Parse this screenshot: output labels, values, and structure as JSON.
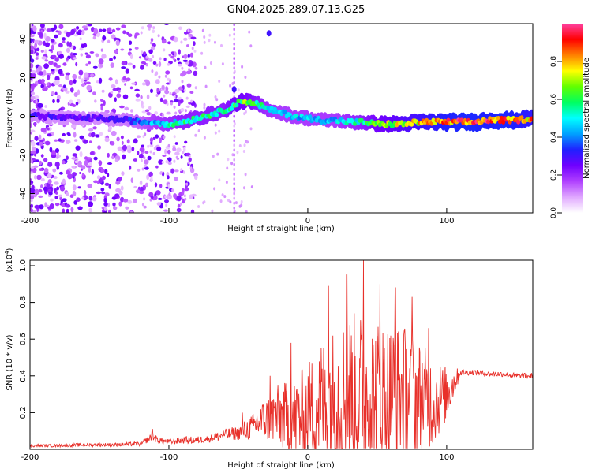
{
  "page_title": "GN04.2025.289.07.13.G25",
  "chart_data": [
    {
      "type": "heatmap",
      "name": "spectrogram",
      "xlabel": "Height of straight line (km)",
      "ylabel": "Frequency (Hz)",
      "xlim": [
        -200,
        162
      ],
      "ylim": [
        -50,
        48
      ],
      "xticks": [
        -200,
        -100,
        0,
        100
      ],
      "yticks": [
        -40,
        -20,
        0,
        20,
        40
      ],
      "colorbar": {
        "label": "Normalized spectral amplitude",
        "range": [
          0,
          1
        ],
        "ticks": [
          0.0,
          0.2,
          0.4,
          0.6,
          0.8
        ],
        "tick_labels": [
          "0.0",
          "0.2",
          "0.4",
          "0.6",
          "0.8"
        ],
        "colors": [
          "#ffffff",
          "#e0a8ff",
          "#b040ff",
          "#7000ff",
          "#2020ff",
          "#00a0ff",
          "#00ffff",
          "#00ff60",
          "#60ff00",
          "#ffff00",
          "#ff8000",
          "#ff0000",
          "#ff40a0"
        ]
      },
      "ridge": {
        "x": [
          -200,
          -190,
          -170,
          -150,
          -130,
          -120,
          -110,
          -100,
          -90,
          -80,
          -70,
          -60,
          -55,
          -50,
          -45,
          -40,
          -35,
          -30,
          -20,
          -10,
          0,
          10,
          20,
          30,
          40,
          50,
          60,
          70,
          80,
          90,
          100,
          110,
          120,
          130,
          140,
          150,
          162
        ],
        "freq": [
          1,
          0,
          -1,
          -1,
          -2,
          -3,
          -3,
          -4,
          -3,
          -1,
          1,
          3,
          5,
          7,
          8,
          7,
          6,
          4,
          2,
          0,
          -1,
          -2,
          -2,
          -3,
          -3,
          -4,
          -4,
          -4,
          -3,
          -3,
          -3,
          -3,
          -3,
          -2,
          -2,
          -2,
          -1
        ],
        "amplitude": [
          0.35,
          0.3,
          0.3,
          0.3,
          0.35,
          0.4,
          0.5,
          0.55,
          0.6,
          0.6,
          0.6,
          0.6,
          0.65,
          0.7,
          0.7,
          0.65,
          0.6,
          0.55,
          0.5,
          0.5,
          0.5,
          0.5,
          0.5,
          0.55,
          0.6,
          0.7,
          0.75,
          0.8,
          0.85,
          0.9,
          0.95,
          0.97,
          0.97,
          0.95,
          0.97,
          0.95,
          0.9
        ]
      },
      "annotations": [
        {
          "text": "isolated streak",
          "x": -28,
          "freq": 43
        },
        {
          "text": "vertical streak",
          "x": -53,
          "freq": 14
        }
      ]
    },
    {
      "type": "line",
      "name": "snr",
      "xlabel": "Height of straight line (km)",
      "ylabel": "SNR (10 * v/v)",
      "y_multiplier_label": "(x10",
      "y_multiplier_exponent": "4",
      "y_multiplier_suffix": ")",
      "xlim": [
        -200,
        162
      ],
      "ylim": [
        0,
        1.03
      ],
      "xticks": [
        -200,
        -100,
        0,
        100
      ],
      "yticks": [
        0.2,
        0.4,
        0.6,
        0.8,
        1.0
      ],
      "ytick_labels": [
        "0.2",
        "0.4",
        "0.6",
        "0.8",
        "1.0"
      ],
      "series": [
        {
          "name": "SNR",
          "color": "#e8302a",
          "x": [
            -200,
            -180,
            -160,
            -140,
            -120,
            -112,
            -108,
            -100,
            -90,
            -80,
            -70,
            -60,
            -50,
            -40,
            -35,
            -30,
            -25,
            -20,
            -15,
            -10,
            -5,
            0,
            5,
            10,
            20,
            30,
            40,
            50,
            60,
            70,
            80,
            90,
            100,
            110,
            120,
            130,
            140,
            150,
            162
          ],
          "base": [
            0.02,
            0.02,
            0.025,
            0.025,
            0.03,
            0.07,
            0.05,
            0.04,
            0.05,
            0.05,
            0.06,
            0.08,
            0.09,
            0.12,
            0.15,
            0.16,
            0.18,
            0.18,
            0.17,
            0.16,
            0.18,
            0.2,
            0.22,
            0.26,
            0.28,
            0.3,
            0.3,
            0.3,
            0.3,
            0.3,
            0.28,
            0.26,
            0.3,
            0.42,
            0.42,
            0.41,
            0.41,
            0.4,
            0.4
          ],
          "spread": [
            0.008,
            0.008,
            0.01,
            0.01,
            0.012,
            0.02,
            0.02,
            0.015,
            0.02,
            0.02,
            0.02,
            0.03,
            0.04,
            0.07,
            0.1,
            0.12,
            0.15,
            0.18,
            0.2,
            0.22,
            0.25,
            0.28,
            0.32,
            0.35,
            0.4,
            0.45,
            0.45,
            0.42,
            0.4,
            0.38,
            0.32,
            0.25,
            0.15,
            0.02,
            0.015,
            0.015,
            0.015,
            0.015,
            0.015
          ],
          "peaks": [
            {
              "x": -112,
              "y": 0.11
            },
            {
              "x": -47,
              "y": 0.2
            },
            {
              "x": -27,
              "y": 0.4
            },
            {
              "x": -12,
              "y": 0.58
            },
            {
              "x": 15,
              "y": 0.89
            },
            {
              "x": 28,
              "y": 0.95
            },
            {
              "x": 40,
              "y": 1.03
            },
            {
              "x": 52,
              "y": 0.9
            },
            {
              "x": 63,
              "y": 0.88
            },
            {
              "x": 75,
              "y": 0.83
            },
            {
              "x": 87,
              "y": 0.66
            }
          ]
        }
      ]
    }
  ]
}
